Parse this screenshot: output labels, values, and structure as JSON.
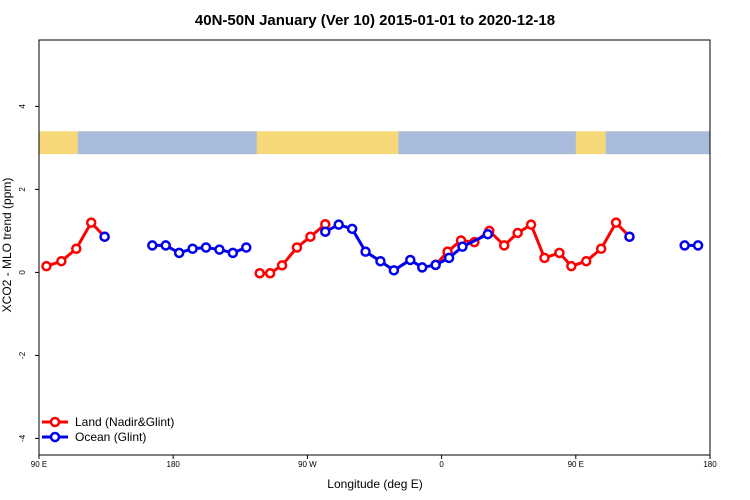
{
  "chart_data": {
    "type": "line",
    "title": "40N-50N January (Ver 10)   2015-01-01 to 2020-12-18",
    "xlabel": "Longitude (deg E)",
    "ylabel": "XCO2 - MLO trend (ppm)",
    "xlim": [
      90,
      540
    ],
    "ylim": [
      -4.4,
      5.6
    ],
    "x_ticks": [
      {
        "value": 90,
        "label": "90 E"
      },
      {
        "value": 180,
        "label": "180"
      },
      {
        "value": 270,
        "label": "90 W"
      },
      {
        "value": 360,
        "label": "0"
      },
      {
        "value": 450,
        "label": "90 E"
      },
      {
        "value": 540,
        "label": "180"
      }
    ],
    "y_ticks": [
      {
        "value": 4,
        "label": "4"
      },
      {
        "value": 2,
        "label": "2"
      },
      {
        "value": 0,
        "label": "0"
      },
      {
        "value": -2,
        "label": "-2"
      },
      {
        "value": -4,
        "label": "-4"
      }
    ],
    "land_ocean_band": {
      "ymin": 2.85,
      "ymax": 3.4,
      "land_color": "#f7d878",
      "ocean_color": "#a9bcdc"
    },
    "legend_position": "bottom-left",
    "series": [
      {
        "name": "Land (Nadir&Glint)",
        "color": "#ff0000",
        "segments": [
          [
            [
              95,
              0.15
            ],
            [
              105,
              0.27
            ],
            [
              115,
              0.57
            ],
            [
              125,
              1.2
            ],
            [
              134,
              0.86
            ]
          ],
          [
            [
              238,
              -0.02
            ],
            [
              245,
              -0.02
            ],
            [
              253,
              0.17
            ],
            [
              263,
              0.6
            ],
            [
              272,
              0.86
            ],
            [
              282,
              1.16
            ]
          ],
          [
            [
              356,
              0.18
            ],
            [
              364,
              0.5
            ],
            [
              373,
              0.77
            ],
            [
              382,
              0.73
            ],
            [
              392,
              1.0
            ],
            [
              402,
              0.65
            ],
            [
              411,
              0.95
            ],
            [
              420,
              1.15
            ],
            [
              429,
              0.35
            ],
            [
              439,
              0.47
            ],
            [
              447,
              0.15
            ],
            [
              457,
              0.27
            ],
            [
              467,
              0.57
            ],
            [
              477,
              1.2
            ],
            [
              486,
              0.86
            ]
          ]
        ]
      },
      {
        "name": "Ocean (Glint)",
        "color": "#0000ee",
        "segments": [
          [
            [
              134,
              0.86
            ]
          ],
          [
            [
              166,
              0.65
            ],
            [
              175,
              0.65
            ],
            [
              184,
              0.47
            ],
            [
              193,
              0.57
            ],
            [
              202,
              0.6
            ],
            [
              211,
              0.55
            ],
            [
              220,
              0.47
            ],
            [
              229,
              0.6
            ]
          ],
          [
            [
              282,
              0.98
            ],
            [
              291,
              1.15
            ],
            [
              300,
              1.05
            ],
            [
              309,
              0.5
            ],
            [
              319,
              0.27
            ],
            [
              328,
              0.05
            ],
            [
              339,
              0.3
            ],
            [
              347,
              0.12
            ],
            [
              356,
              0.18
            ],
            [
              365,
              0.35
            ],
            [
              374,
              0.62
            ],
            [
              391,
              0.92
            ]
          ],
          [
            [
              486,
              0.86
            ]
          ],
          [
            [
              523,
              0.65
            ],
            [
              532,
              0.65
            ]
          ]
        ]
      }
    ]
  }
}
